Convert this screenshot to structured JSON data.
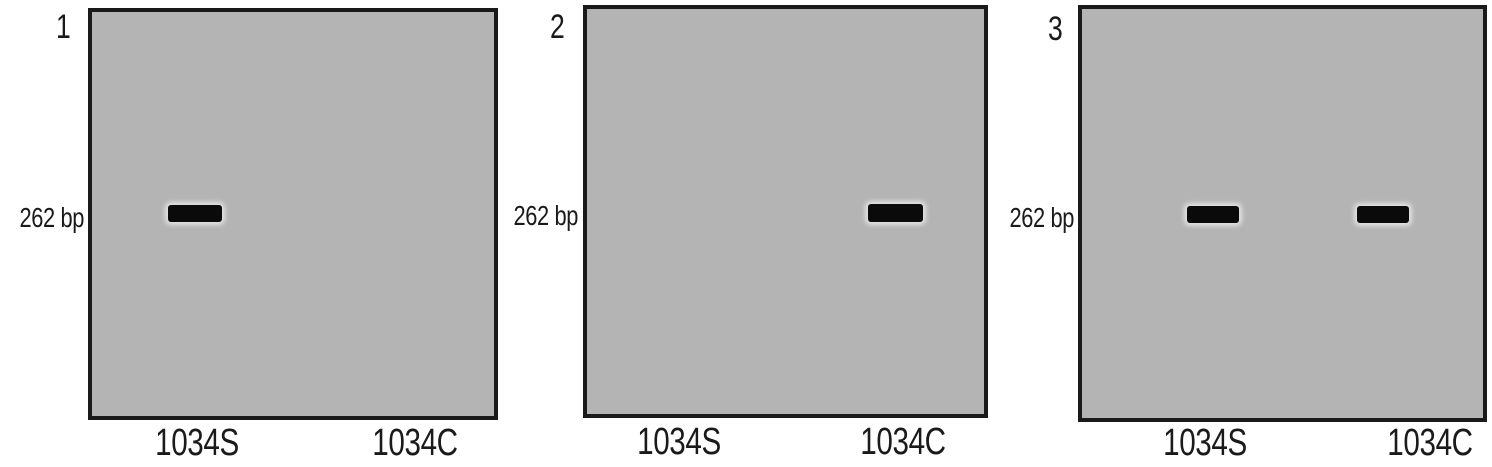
{
  "figure": {
    "band_size": "262 bp",
    "colors": {
      "gel_background": "#b4b4b4",
      "band": "#0a0a0a",
      "border": "#1a1a1a",
      "page_background": "#ffffff",
      "text": "#1a1a1a"
    },
    "panels": [
      {
        "number": "1",
        "size_label": "262 bp",
        "lanes": [
          {
            "label": "1034S",
            "band": true
          },
          {
            "label": "1034C",
            "band": false
          }
        ]
      },
      {
        "number": "2",
        "size_label": "262 bp",
        "lanes": [
          {
            "label": "1034S",
            "band": false
          },
          {
            "label": "1034C",
            "band": true
          }
        ]
      },
      {
        "number": "3",
        "size_label": "262 bp",
        "lanes": [
          {
            "label": "1034S",
            "band": true
          },
          {
            "label": "1034C",
            "band": true
          }
        ]
      }
    ]
  }
}
